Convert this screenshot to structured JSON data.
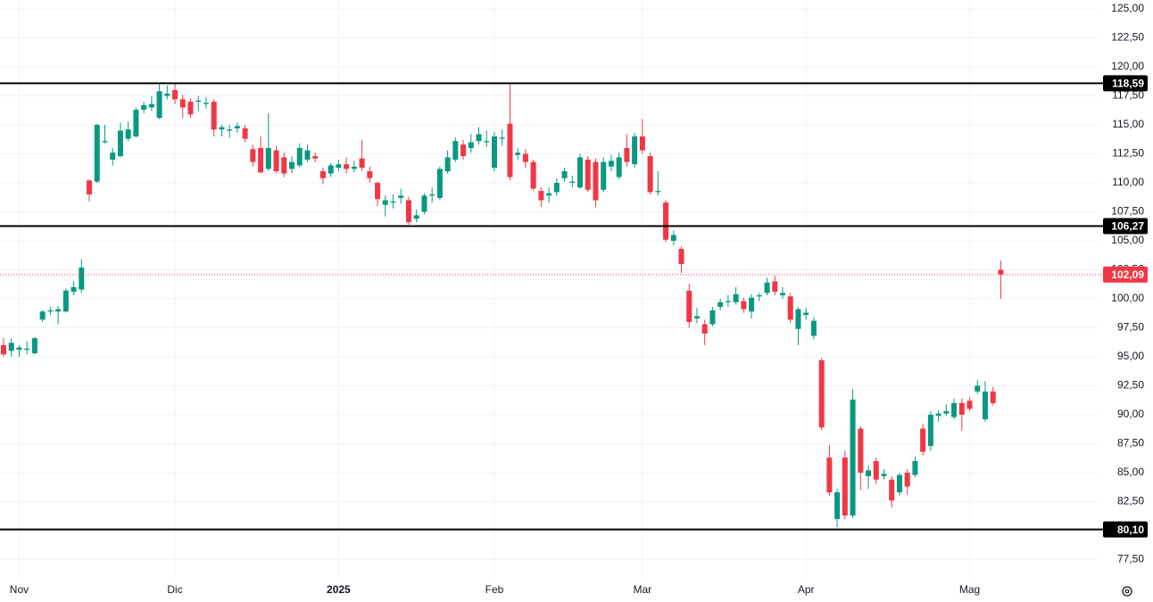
{
  "chart_data": {
    "type": "candlestick",
    "up_color": "#089981",
    "down_color": "#f23645",
    "grid": true,
    "ylim": [
      75.92,
      125.77
    ],
    "yticks": [
      {
        "value": 77.5,
        "label": "77,50"
      },
      {
        "value": 80,
        "label": "80,00"
      },
      {
        "value": 82.5,
        "label": "82,50"
      },
      {
        "value": 85,
        "label": "85,00"
      },
      {
        "value": 87.5,
        "label": "87,50"
      },
      {
        "value": 90,
        "label": "90,00"
      },
      {
        "value": 92.5,
        "label": "92,50"
      },
      {
        "value": 95,
        "label": "95,00"
      },
      {
        "value": 97.5,
        "label": "97,50"
      },
      {
        "value": 100,
        "label": "100,00"
      },
      {
        "value": 102.5,
        "label": "102,50"
      },
      {
        "value": 105,
        "label": "105,00"
      },
      {
        "value": 107.5,
        "label": "107,50"
      },
      {
        "value": 110,
        "label": "110,00"
      },
      {
        "value": 112.5,
        "label": "112,50"
      },
      {
        "value": 115,
        "label": "115,00"
      },
      {
        "value": 117.5,
        "label": "117,50"
      },
      {
        "value": 120,
        "label": "120,00"
      },
      {
        "value": 122.5,
        "label": "122,50"
      },
      {
        "value": 125,
        "label": "125,00"
      }
    ],
    "levels": [
      {
        "value": 118.59,
        "label": "118,59"
      },
      {
        "value": 106.27,
        "label": "106,27"
      },
      {
        "value": 80.1,
        "label": "80,10"
      }
    ],
    "last_price": {
      "value": 102.09,
      "label": "102,09"
    },
    "categories": [
      null,
      null,
      "Nov",
      null,
      null,
      null,
      null,
      null,
      null,
      null,
      null,
      null,
      null,
      null,
      null,
      null,
      null,
      null,
      null,
      null,
      null,
      null,
      "Dic",
      null,
      null,
      null,
      null,
      null,
      null,
      null,
      null,
      null,
      null,
      null,
      null,
      null,
      null,
      null,
      null,
      null,
      null,
      null,
      null,
      "2025",
      null,
      null,
      null,
      null,
      null,
      null,
      null,
      null,
      null,
      null,
      null,
      null,
      null,
      null,
      null,
      null,
      null,
      null,
      null,
      "Feb",
      null,
      null,
      null,
      null,
      null,
      null,
      null,
      null,
      null,
      null,
      null,
      null,
      null,
      null,
      null,
      null,
      null,
      null,
      "Mar",
      null,
      null,
      null,
      null,
      null,
      null,
      null,
      null,
      null,
      null,
      null,
      null,
      null,
      null,
      null,
      null,
      null,
      null,
      null,
      null,
      "Apr",
      null,
      null,
      null,
      null,
      null,
      null,
      null,
      null,
      null,
      null,
      null,
      null,
      null,
      null,
      null,
      null,
      null,
      null,
      null,
      null,
      "Mag",
      null,
      null,
      null,
      null
    ],
    "open": [
      96.0,
      95.5,
      95.6,
      95.6,
      95.3,
      98.2,
      98.9,
      98.9,
      98.9,
      100.6,
      100.8,
      110.2,
      110.1,
      113.5,
      112.0,
      112.3,
      113.8,
      114.0,
      116.3,
      116.5,
      115.6,
      117.5,
      118.0,
      117.2,
      117.0,
      117.0,
      116.8,
      117.0,
      114.6,
      114.5,
      114.7,
      114.7,
      112.9,
      113.0,
      111.2,
      112.8,
      112.2,
      111.2,
      111.5,
      112.0,
      112.3,
      111.0,
      110.8,
      111.3,
      111.6,
      111.2,
      112.1,
      111.0,
      110.0,
      108.1,
      108.3,
      108.7,
      108.5,
      106.9,
      107.5,
      108.9,
      108.7,
      111.0,
      112.0,
      113.3,
      113.0,
      113.6,
      113.5,
      111.3,
      113.8,
      115.1,
      112.4,
      112.5,
      111.8,
      109.3,
      108.9,
      109.2,
      110.4,
      110.0,
      109.6,
      112.0,
      111.8,
      109.4,
      111.4,
      110.5,
      113.0,
      111.6,
      114.0,
      112.3,
      109.2,
      108.3,
      105.0,
      104.3,
      100.7,
      98.3,
      97.8,
      97.8,
      99.3,
      99.7,
      99.7,
      99.8,
      98.9,
      100.2,
      100.5,
      101.5,
      100.3,
      100.2,
      97.4,
      98.6,
      96.8,
      94.7,
      86.3,
      81.0,
      86.3,
      81.3,
      88.8,
      84.7,
      86.0,
      84.7,
      84.4,
      83.3,
      85.0,
      84.8,
      88.8,
      87.3,
      89.9,
      90.1,
      89.8,
      91.0,
      91.2,
      92.0,
      89.6,
      92.0,
      102.5
    ],
    "high": [
      96.6,
      96.6,
      96.0,
      96.3,
      96.7,
      99.0,
      99.3,
      99.4,
      100.9,
      101.5,
      103.4,
      110.3,
      115.1,
      115.0,
      113.0,
      115.2,
      115.3,
      116.5,
      117.0,
      117.5,
      118.5,
      118.4,
      118.6,
      117.6,
      117.3,
      117.5,
      117.4,
      117.2,
      115.0,
      115.0,
      115.2,
      115.0,
      113.3,
      114.0,
      116.0,
      113.2,
      112.6,
      112.3,
      113.4,
      113.3,
      112.6,
      111.3,
      111.7,
      112.0,
      112.2,
      111.9,
      113.7,
      111.4,
      110.1,
      108.9,
      109.0,
      109.5,
      108.8,
      107.7,
      109.1,
      109.6,
      111.4,
      112.8,
      113.9,
      113.7,
      114.2,
      114.8,
      114.5,
      114.4,
      114.6,
      118.6,
      113.0,
      112.9,
      112.0,
      109.6,
      109.6,
      110.4,
      111.3,
      110.6,
      112.5,
      112.3,
      112.1,
      112.2,
      112.4,
      112.6,
      114.2,
      114.3,
      115.5,
      112.6,
      111.0,
      108.5,
      105.9,
      104.5,
      101.3,
      99.2,
      98.2,
      99.3,
      100.0,
      100.3,
      101.0,
      100.1,
      100.4,
      100.5,
      101.8,
      102.0,
      101.0,
      100.5,
      99.3,
      99.2,
      98.4,
      94.9,
      87.4,
      83.6,
      86.9,
      92.2,
      89.0,
      85.6,
      86.3,
      85.3,
      84.7,
      85.0,
      85.3,
      86.4,
      89.2,
      90.3,
      90.4,
      90.9,
      91.4,
      91.4,
      91.5,
      93.0,
      92.9,
      92.4,
      103.3
    ],
    "low": [
      95.0,
      95.0,
      95.0,
      95.2,
      95.2,
      98.0,
      98.6,
      97.8,
      98.8,
      100.3,
      100.5,
      108.4,
      110.0,
      113.4,
      111.5,
      112.2,
      113.6,
      113.9,
      116.0,
      116.2,
      115.5,
      117.2,
      116.8,
      115.6,
      115.6,
      116.2,
      116.4,
      114.0,
      114.0,
      113.9,
      114.3,
      113.5,
      111.4,
      110.8,
      111.0,
      110.8,
      110.5,
      110.8,
      111.3,
      111.8,
      111.8,
      109.9,
      110.5,
      111.0,
      110.8,
      110.9,
      111.0,
      110.0,
      108.0,
      107.1,
      107.8,
      108.2,
      106.4,
      106.6,
      107.3,
      108.3,
      108.5,
      110.8,
      111.8,
      112.0,
      112.6,
      113.3,
      113.1,
      111.0,
      113.2,
      110.2,
      112.0,
      111.3,
      109.3,
      107.9,
      108.3,
      108.9,
      110.1,
      109.6,
      109.5,
      109.2,
      107.9,
      109.2,
      111.0,
      110.3,
      111.4,
      111.3,
      112.5,
      109.0,
      108.9,
      104.9,
      104.6,
      102.2,
      97.5,
      97.9,
      96.0,
      97.6,
      99.0,
      99.3,
      99.5,
      98.8,
      98.3,
      99.8,
      100.3,
      100.3,
      100.0,
      97.9,
      96.0,
      98.2,
      96.5,
      88.7,
      83.0,
      80.3,
      81.0,
      81.1,
      83.5,
      83.6,
      84.0,
      84.4,
      82.0,
      83.0,
      83.1,
      84.6,
      86.5,
      86.9,
      89.4,
      89.9,
      89.6,
      88.6,
      90.3,
      91.8,
      89.4,
      90.8,
      100.0
    ],
    "close": [
      95.2,
      96.2,
      95.8,
      95.7,
      96.6,
      98.9,
      99.0,
      99.1,
      100.7,
      101.0,
      102.7,
      109.0,
      115.0,
      113.6,
      112.6,
      114.5,
      114.6,
      116.3,
      116.7,
      116.8,
      117.9,
      117.7,
      117.2,
      116.5,
      115.9,
      117.1,
      116.9,
      114.6,
      114.8,
      114.6,
      114.9,
      113.8,
      111.8,
      110.9,
      113.0,
      111.0,
      110.8,
      111.8,
      113.0,
      112.8,
      112.1,
      110.4,
      111.5,
      111.6,
      111.2,
      111.4,
      111.3,
      110.4,
      108.6,
      108.5,
      108.4,
      108.9,
      106.6,
      107.2,
      108.9,
      109.0,
      111.2,
      112.2,
      113.6,
      112.3,
      113.5,
      114.2,
      113.6,
      114.0,
      113.9,
      110.5,
      112.6,
      111.8,
      109.5,
      108.5,
      109.1,
      110.0,
      111.0,
      110.1,
      112.2,
      109.4,
      108.5,
      111.8,
      111.9,
      112.2,
      111.8,
      114.0,
      112.8,
      109.2,
      109.3,
      105.1,
      105.5,
      103.0,
      98.0,
      98.5,
      97.0,
      99.0,
      99.7,
      99.8,
      100.4,
      99.1,
      100.1,
      100.3,
      101.4,
      100.6,
      100.5,
      98.2,
      99.1,
      98.8,
      98.1,
      88.9,
      83.3,
      83.3,
      81.3,
      91.3,
      85.0,
      85.2,
      84.4,
      84.9,
      82.6,
      84.8,
      83.8,
      86.0,
      86.8,
      90.0,
      90.1,
      90.3,
      91.0,
      90.0,
      90.5,
      92.5,
      92.0,
      91.0,
      102.09
    ]
  }
}
